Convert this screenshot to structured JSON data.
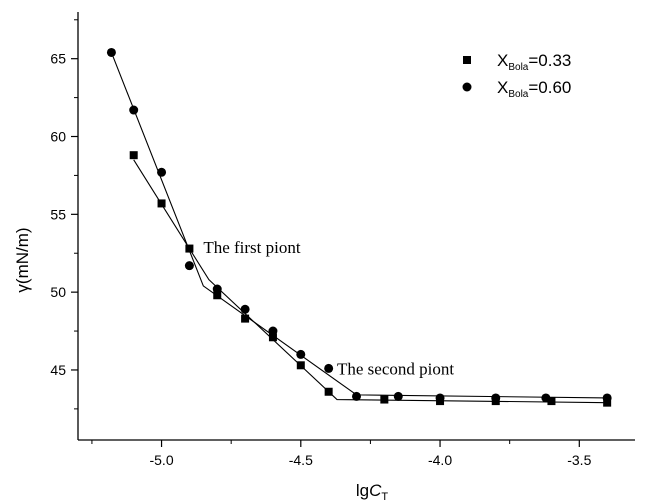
{
  "chart_data": {
    "type": "scatter",
    "xlabel_main": "lg",
    "xlabel_italic": "C",
    "xlabel_sub": "T",
    "ylabel": "γ(mN/m)",
    "xlim": [
      -5.3,
      -3.3
    ],
    "ylim": [
      40.5,
      68.0
    ],
    "xticks": [
      -5.0,
      -4.5,
      -4.0,
      -3.5
    ],
    "xtick_labels": [
      "-5.0",
      "-4.5",
      "-4.0",
      "-3.5"
    ],
    "yticks": [
      45,
      50,
      55,
      60,
      65
    ],
    "ytick_labels": [
      "45",
      "50",
      "55",
      "60",
      "65"
    ],
    "legend_position": "top-right",
    "series": [
      {
        "name": "X_Bola=0.33",
        "legend_prefix": "X",
        "legend_sub": "Bola",
        "legend_suffix": "=0.33",
        "marker": "square",
        "x": [
          -5.1,
          -5.0,
          -4.9,
          -4.8,
          -4.7,
          -4.6,
          -4.5,
          -4.4,
          -4.2,
          -4.0,
          -3.8,
          -3.6,
          -3.4
        ],
        "y": [
          58.8,
          55.7,
          52.8,
          49.8,
          48.3,
          47.1,
          45.3,
          43.6,
          43.1,
          43.0,
          43.0,
          43.0,
          42.9
        ],
        "fit": [
          [
            -5.1,
            58.5
          ],
          [
            -4.83,
            50.8
          ],
          [
            -4.37,
            43.1
          ],
          [
            -3.4,
            42.9
          ]
        ]
      },
      {
        "name": "X_Bola=0.60",
        "legend_prefix": "X",
        "legend_sub": "Bola",
        "legend_suffix": "=0.60",
        "marker": "circle",
        "x": [
          -5.18,
          -5.1,
          -5.0,
          -4.9,
          -4.8,
          -4.7,
          -4.6,
          -4.5,
          -4.4,
          -4.3,
          -4.15,
          -4.0,
          -3.8,
          -3.62,
          -3.4
        ],
        "y": [
          65.4,
          61.7,
          57.7,
          51.7,
          50.2,
          48.9,
          47.5,
          46.0,
          45.1,
          43.3,
          43.3,
          43.2,
          43.2,
          43.2,
          43.2
        ],
        "fit": [
          [
            -5.18,
            65.4
          ],
          [
            -4.85,
            50.4
          ],
          [
            -4.3,
            43.4
          ],
          [
            -3.4,
            43.2
          ]
        ]
      }
    ],
    "annotations": [
      {
        "text": "The first piont",
        "x": -4.85,
        "y": 52.5
      },
      {
        "text": "The second piont",
        "x": -4.37,
        "y": 44.7
      }
    ]
  }
}
